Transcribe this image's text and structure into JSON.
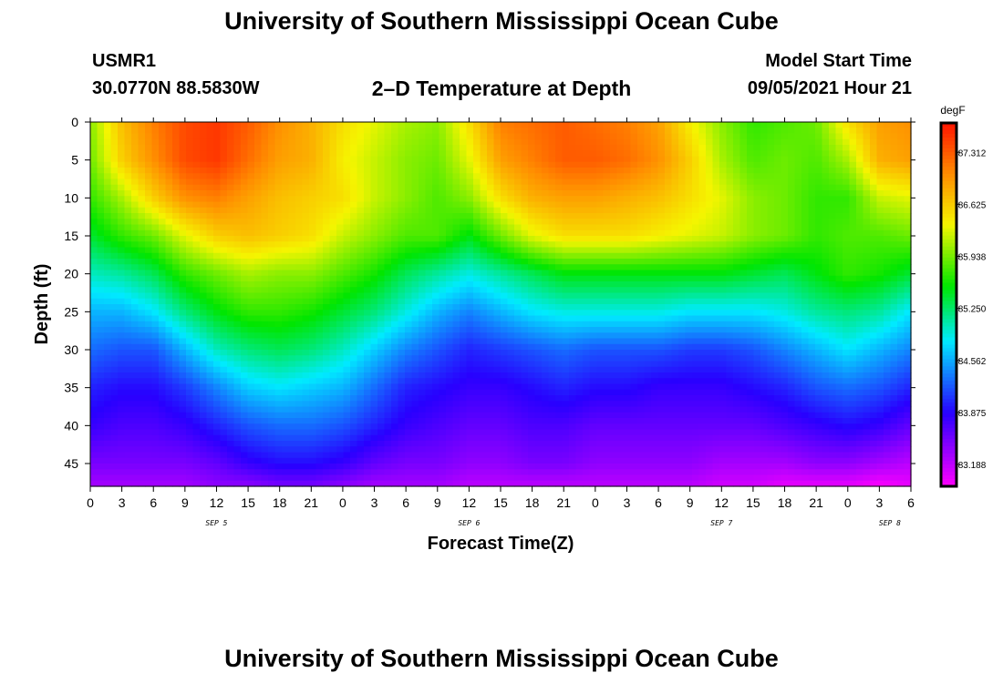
{
  "header": {
    "title": "University of Southern Mississippi Ocean Cube",
    "station": "USMR1",
    "coords": "30.0770N  88.5830W",
    "product": "2–D Temperature at Depth",
    "model_label": "Model Start Time",
    "model_time": "09/05/2021 Hour 21"
  },
  "footer": {
    "title": "University of Southern Mississippi Ocean Cube"
  },
  "chart_data": {
    "type": "heatmap",
    "xlabel": "Forecast Time(Z)",
    "ylabel": "Depth (ft)",
    "colorbar_unit": "degF",
    "x_start_hour": 0,
    "x_end_hour": 78,
    "x_tick_labels": [
      "0",
      "3",
      "6",
      "9",
      "12",
      "15",
      "18",
      "21",
      "0",
      "3",
      "6",
      "9",
      "12",
      "15",
      "18",
      "21",
      "0",
      "3",
      "6",
      "9",
      "12",
      "15",
      "18",
      "21",
      "0",
      "3",
      "6"
    ],
    "day_labels": [
      {
        "label": "SEP 5",
        "hour": 12
      },
      {
        "label": "SEP 6",
        "hour": 36
      },
      {
        "label": "SEP 7",
        "hour": 60
      },
      {
        "label": "SEP 8",
        "hour": 76
      }
    ],
    "ylim": [
      0,
      48
    ],
    "y_ticks": [
      0,
      5,
      10,
      15,
      20,
      25,
      30,
      35,
      40,
      45
    ],
    "colorbar_ticks": [
      "83.188",
      "83.875",
      "84.562",
      "85.250",
      "85.938",
      "86.625",
      "87.312"
    ],
    "colorbar_range": [
      82.9,
      87.7
    ],
    "series": [
      {
        "hour": 0,
        "temps": [
          86.0,
          85.9,
          85.7,
          85.4,
          85.0,
          84.6,
          84.3,
          84.0,
          83.8,
          83.5,
          83.3
        ]
      },
      {
        "hour": 3,
        "temps": [
          86.7,
          86.6,
          86.1,
          85.7,
          85.1,
          84.6,
          84.2,
          83.9,
          83.7,
          83.5,
          83.3
        ]
      },
      {
        "hour": 6,
        "temps": [
          87.1,
          87.0,
          86.6,
          85.9,
          85.3,
          84.8,
          84.2,
          83.9,
          83.7,
          83.5,
          83.3
        ]
      },
      {
        "hour": 9,
        "temps": [
          87.4,
          87.4,
          87.0,
          86.3,
          85.7,
          85.2,
          84.6,
          84.1,
          83.8,
          83.5,
          83.3
        ]
      },
      {
        "hour": 12,
        "temps": [
          87.5,
          87.5,
          87.1,
          86.6,
          85.9,
          85.5,
          85.0,
          84.4,
          84.0,
          83.6,
          83.4
        ]
      },
      {
        "hour": 15,
        "temps": [
          87.3,
          87.2,
          86.9,
          86.7,
          86.1,
          85.7,
          85.2,
          84.7,
          84.2,
          83.8,
          83.4
        ]
      },
      {
        "hour": 18,
        "temps": [
          87.0,
          86.9,
          86.7,
          86.6,
          86.0,
          85.7,
          85.3,
          84.8,
          84.3,
          83.9,
          83.5
        ]
      },
      {
        "hour": 21,
        "temps": [
          86.8,
          86.8,
          86.6,
          86.5,
          86.0,
          85.6,
          85.2,
          84.7,
          84.3,
          83.9,
          83.5
        ]
      },
      {
        "hour": 24,
        "temps": [
          86.5,
          86.4,
          86.5,
          86.2,
          85.8,
          85.4,
          85.0,
          84.6,
          84.2,
          83.8,
          83.4
        ]
      },
      {
        "hour": 27,
        "temps": [
          86.3,
          86.2,
          86.2,
          86.0,
          85.6,
          85.2,
          84.7,
          84.3,
          84.0,
          83.6,
          83.3
        ]
      },
      {
        "hour": 30,
        "temps": [
          86.1,
          86.0,
          86.0,
          85.8,
          85.3,
          84.9,
          84.4,
          84.0,
          83.8,
          83.5,
          83.3
        ]
      },
      {
        "hour": 33,
        "temps": [
          86.0,
          85.9,
          85.8,
          85.8,
          85.1,
          84.6,
          84.2,
          83.9,
          83.7,
          83.5,
          83.3
        ]
      },
      {
        "hour": 36,
        "temps": [
          86.5,
          86.3,
          86.0,
          85.5,
          84.9,
          84.4,
          84.0,
          83.8,
          83.6,
          83.4,
          83.2
        ]
      },
      {
        "hour": 39,
        "temps": [
          87.1,
          86.9,
          86.5,
          85.9,
          85.1,
          84.6,
          84.1,
          83.8,
          83.6,
          83.4,
          83.2
        ]
      },
      {
        "hour": 42,
        "temps": [
          87.2,
          87.1,
          86.8,
          86.3,
          85.3,
          84.8,
          84.2,
          83.9,
          83.7,
          83.5,
          83.2
        ]
      },
      {
        "hour": 45,
        "temps": [
          87.3,
          87.3,
          86.9,
          86.5,
          85.5,
          84.9,
          84.3,
          84.0,
          83.7,
          83.5,
          83.2
        ]
      },
      {
        "hour": 48,
        "temps": [
          87.2,
          87.3,
          86.9,
          86.5,
          85.5,
          84.9,
          84.2,
          83.9,
          83.6,
          83.4,
          83.2
        ]
      },
      {
        "hour": 51,
        "temps": [
          87.1,
          87.2,
          86.8,
          86.5,
          85.5,
          84.9,
          84.2,
          83.9,
          83.6,
          83.4,
          83.2
        ]
      },
      {
        "hour": 54,
        "temps": [
          86.9,
          87.0,
          86.7,
          86.4,
          85.5,
          84.9,
          84.2,
          83.8,
          83.6,
          83.4,
          83.2
        ]
      },
      {
        "hour": 57,
        "temps": [
          86.4,
          86.6,
          86.5,
          86.3,
          85.5,
          84.8,
          84.1,
          83.8,
          83.6,
          83.4,
          83.2
        ]
      },
      {
        "hour": 60,
        "temps": [
          86.0,
          86.1,
          86.3,
          86.2,
          85.5,
          84.8,
          84.1,
          83.8,
          83.6,
          83.3,
          83.1
        ]
      },
      {
        "hour": 63,
        "temps": [
          85.7,
          85.8,
          86.0,
          86.0,
          85.4,
          84.8,
          84.2,
          83.9,
          83.6,
          83.3,
          83.1
        ]
      },
      {
        "hour": 66,
        "temps": [
          85.8,
          85.9,
          85.9,
          85.9,
          85.3,
          84.9,
          84.4,
          84.0,
          83.7,
          83.3,
          83.0
        ]
      },
      {
        "hour": 69,
        "temps": [
          85.9,
          85.8,
          85.7,
          85.7,
          85.5,
          85.1,
          84.6,
          84.2,
          83.8,
          83.4,
          83.0
        ]
      },
      {
        "hour": 72,
        "temps": [
          86.5,
          86.1,
          85.7,
          85.8,
          85.7,
          85.2,
          84.8,
          84.3,
          83.9,
          83.4,
          83.0
        ]
      },
      {
        "hour": 75,
        "temps": [
          86.9,
          86.8,
          86.2,
          85.8,
          85.6,
          85.1,
          84.6,
          84.2,
          83.8,
          83.3,
          82.9
        ]
      },
      {
        "hour": 78,
        "temps": [
          87.0,
          86.9,
          86.3,
          85.9,
          85.4,
          84.8,
          84.4,
          84.0,
          83.6,
          83.2,
          83.0
        ]
      }
    ],
    "series_depths": [
      0,
      5,
      10,
      15,
      20,
      25,
      30,
      35,
      40,
      45,
      48
    ]
  }
}
